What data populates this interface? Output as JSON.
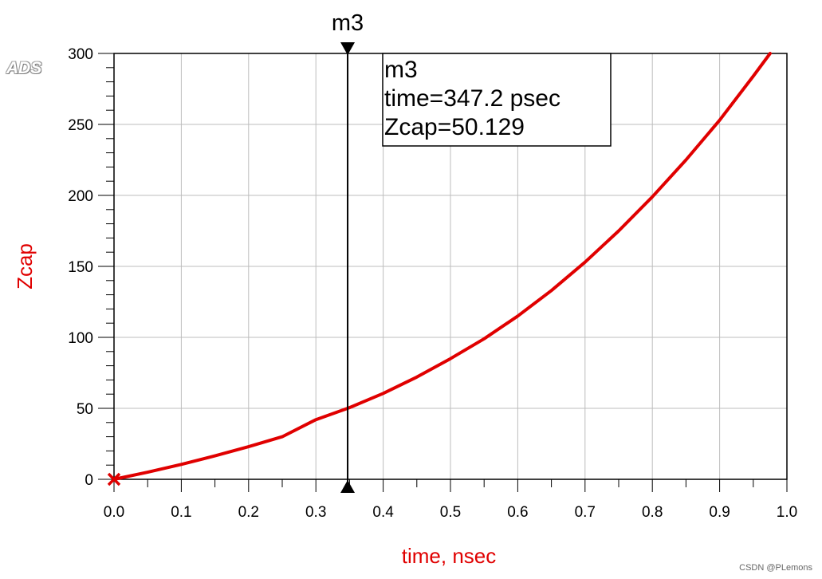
{
  "logo_text": "ADS",
  "watermark": "CSDN @PLemons",
  "colors": {
    "trace": "#e00000",
    "axis_label": "#e00000",
    "grid": "#bdbdbd",
    "marker": "#000000"
  },
  "marker": {
    "label": "m3",
    "readout_line1": "m3",
    "readout_line2": "time=347.2 psec",
    "readout_line3": "Zcap=50.129",
    "time_nsec": 0.3472,
    "zcap": 50.129
  },
  "chart_data": {
    "type": "line",
    "xlabel": "time, nsec",
    "ylabel": "Zcap",
    "xlim": [
      0.0,
      1.0
    ],
    "ylim": [
      0,
      300
    ],
    "x_ticks": [
      "0.0",
      "0.1",
      "0.2",
      "0.3",
      "0.4",
      "0.5",
      "0.6",
      "0.7",
      "0.8",
      "0.9",
      "1.0"
    ],
    "y_ticks": [
      "0",
      "50",
      "100",
      "150",
      "200",
      "250",
      "300"
    ],
    "grid": true,
    "series": [
      {
        "x": [
          0.0,
          0.05,
          0.1,
          0.15,
          0.2,
          0.25,
          0.3,
          0.35,
          0.4,
          0.45,
          0.5,
          0.55,
          0.6,
          0.65,
          0.7,
          0.75,
          0.8,
          0.85,
          0.9,
          0.95,
          0.975
        ],
        "values": [
          0,
          5,
          10.5,
          16.5,
          23,
          30,
          42,
          50.5,
          60.5,
          72,
          85,
          99,
          115,
          133,
          153,
          175,
          199,
          225,
          253,
          284,
          300
        ]
      }
    ]
  }
}
